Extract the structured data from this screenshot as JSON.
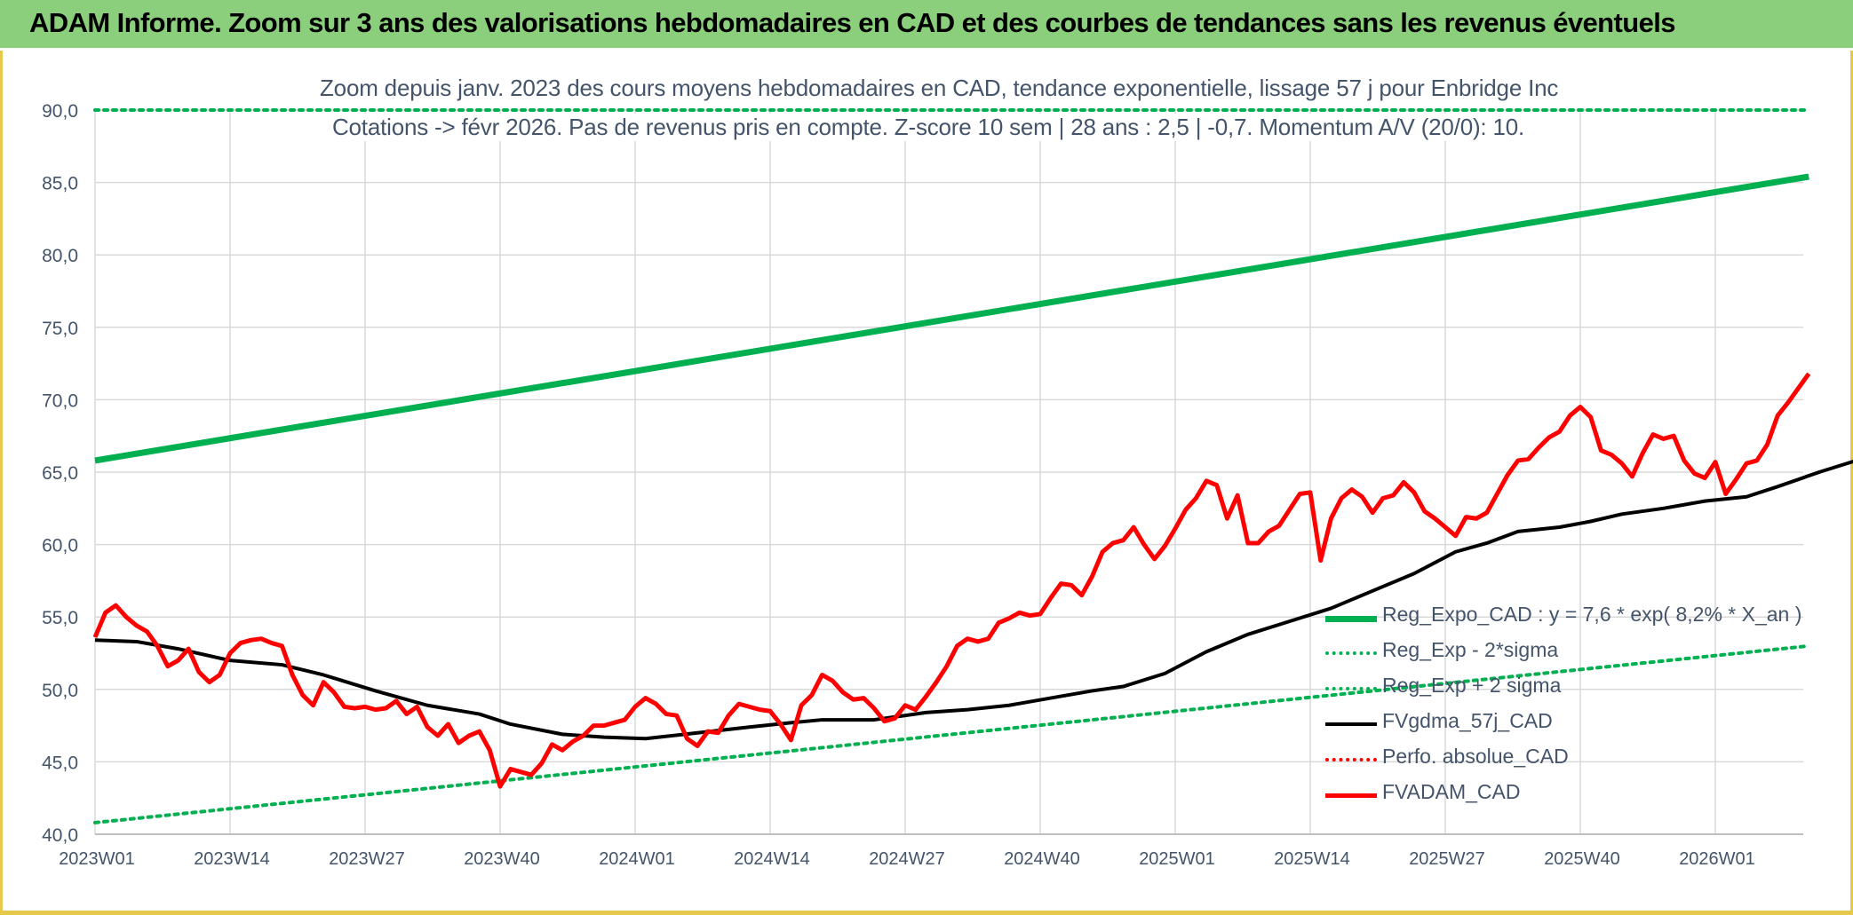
{
  "header": {
    "title": "ADAM Informe. Zoom sur 3 ans des valorisations hebdomadaires en CAD et des courbes de tendances sans les revenus éventuels"
  },
  "colors": {
    "header_bg": "#8bcf7c",
    "regression": "#00b050",
    "fvgdma": "#000000",
    "fvadam": "#ff0000",
    "perfo": "#ff0000",
    "axis_text": "#44546a",
    "grid": "#d9d9d9"
  },
  "chart_data": {
    "type": "line",
    "title": [
      "Zoom depuis janv. 2023 des cours moyens hebdomadaires en CAD, tendance exponentielle, lissage 57 j pour Enbridge Inc",
      "Cotations -> févr 2026. Pas de revenus pris en compte. Z-score 10 sem | 28 ans : 2,5 | -0,7. Momentum A/V (20/0): 10."
    ],
    "xlabel": "",
    "ylabel": "",
    "ylim": [
      40,
      90
    ],
    "yticks": [
      "40,0",
      "45,0",
      "50,0",
      "55,0",
      "60,0",
      "65,0",
      "70,0",
      "75,0",
      "80,0",
      "85,0",
      "90,0"
    ],
    "x_tick_labels": [
      "2023W01",
      "2023W14",
      "2023W27",
      "2023W40",
      "2024W01",
      "2024W14",
      "2024W27",
      "2024W40",
      "2025W01",
      "2025W14",
      "2025W27",
      "2025W40",
      "2026W01"
    ],
    "x_tick_step": 13,
    "n_weeks": 166,
    "grid": true,
    "legend_position": "bottom-right",
    "series": [
      {
        "name": "Reg_Expo_CAD : y = 7,6 * exp( 8,2% *  X_an )",
        "style": "solid-thick",
        "color": "#00b050",
        "points": [
          [
            0,
            65.8
          ],
          [
            165,
            85.4
          ]
        ]
      },
      {
        "name": "Reg_Exp - 2*sigma",
        "style": "dotted",
        "color": "#00b050",
        "points": [
          [
            0,
            40.8
          ],
          [
            165,
            53.0
          ]
        ]
      },
      {
        "name": "Reg_Exp + 2 sigma",
        "style": "dotted",
        "color": "#00b050",
        "points": [
          [
            0,
            90.0
          ],
          [
            165,
            90.0
          ]
        ]
      },
      {
        "name": "FVgdma_57j_CAD",
        "style": "solid",
        "color": "#000000",
        "points": [
          [
            0,
            53.4
          ],
          [
            4,
            53.3
          ],
          [
            8,
            52.8
          ],
          [
            13,
            52.0
          ],
          [
            18,
            51.7
          ],
          [
            22,
            51.0
          ],
          [
            27,
            49.9
          ],
          [
            32,
            48.9
          ],
          [
            37,
            48.3
          ],
          [
            40,
            47.6
          ],
          [
            45,
            46.9
          ],
          [
            49,
            46.7
          ],
          [
            53,
            46.6
          ],
          [
            58,
            47.0
          ],
          [
            63,
            47.4
          ],
          [
            67,
            47.7
          ],
          [
            70,
            47.9
          ],
          [
            75,
            47.9
          ],
          [
            80,
            48.4
          ],
          [
            84,
            48.6
          ],
          [
            88,
            48.9
          ],
          [
            92,
            49.4
          ],
          [
            96,
            49.9
          ],
          [
            99,
            50.2
          ],
          [
            103,
            51.1
          ],
          [
            107,
            52.6
          ],
          [
            111,
            53.8
          ],
          [
            115,
            54.7
          ],
          [
            119,
            55.6
          ],
          [
            123,
            56.8
          ],
          [
            127,
            58.0
          ],
          [
            131,
            59.5
          ],
          [
            134,
            60.1
          ],
          [
            137,
            60.9
          ],
          [
            141,
            61.2
          ],
          [
            144,
            61.6
          ],
          [
            147,
            62.1
          ],
          [
            151,
            62.5
          ],
          [
            155,
            63.0
          ],
          [
            159,
            63.3
          ],
          [
            162,
            64.0
          ],
          [
            166,
            65.0
          ],
          [
            170,
            65.9
          ],
          [
            173,
            66.3
          ],
          [
            177,
            66.4
          ],
          [
            180,
            66.6
          ],
          [
            184,
            66.9
          ],
          [
            188,
            66.9
          ],
          [
            192,
            67.1
          ],
          [
            196,
            68.2
          ],
          [
            199,
            69.5
          ]
        ]
      },
      {
        "name": "Perfo. absolue_CAD",
        "style": "dotted",
        "color": "#ff0000",
        "points": []
      },
      {
        "name": "FVADAM_CAD",
        "style": "solid-thick",
        "color": "#ff0000",
        "points": [
          [
            0,
            53.6
          ],
          [
            1,
            55.3
          ],
          [
            2,
            55.8
          ],
          [
            3,
            55.0
          ],
          [
            4,
            54.4
          ],
          [
            5,
            54.0
          ],
          [
            6,
            53.0
          ],
          [
            7,
            51.6
          ],
          [
            8,
            52.0
          ],
          [
            9,
            52.8
          ],
          [
            10,
            51.2
          ],
          [
            11,
            50.5
          ],
          [
            12,
            51.0
          ],
          [
            13,
            52.5
          ],
          [
            14,
            53.2
          ],
          [
            15,
            53.4
          ],
          [
            16,
            53.5
          ],
          [
            17,
            53.2
          ],
          [
            18,
            53.0
          ],
          [
            19,
            51.0
          ],
          [
            20,
            49.6
          ],
          [
            21,
            48.9
          ],
          [
            22,
            50.5
          ],
          [
            23,
            49.8
          ],
          [
            24,
            48.8
          ],
          [
            25,
            48.7
          ],
          [
            26,
            48.8
          ],
          [
            27,
            48.6
          ],
          [
            28,
            48.7
          ],
          [
            29,
            49.2
          ],
          [
            30,
            48.3
          ],
          [
            31,
            48.8
          ],
          [
            32,
            47.4
          ],
          [
            33,
            46.8
          ],
          [
            34,
            47.6
          ],
          [
            35,
            46.3
          ],
          [
            36,
            46.8
          ],
          [
            37,
            47.1
          ],
          [
            38,
            45.8
          ],
          [
            39,
            43.3
          ],
          [
            40,
            44.5
          ],
          [
            41,
            44.3
          ],
          [
            42,
            44.1
          ],
          [
            43,
            44.9
          ],
          [
            44,
            46.2
          ],
          [
            45,
            45.8
          ],
          [
            46,
            46.4
          ],
          [
            47,
            46.8
          ],
          [
            48,
            47.5
          ],
          [
            49,
            47.5
          ],
          [
            50,
            47.7
          ],
          [
            51,
            47.9
          ],
          [
            52,
            48.8
          ],
          [
            53,
            49.4
          ],
          [
            54,
            49.0
          ],
          [
            55,
            48.3
          ],
          [
            56,
            48.2
          ],
          [
            57,
            46.6
          ],
          [
            58,
            46.1
          ],
          [
            59,
            47.1
          ],
          [
            60,
            47.0
          ],
          [
            61,
            48.2
          ],
          [
            62,
            49.0
          ],
          [
            63,
            48.8
          ],
          [
            64,
            48.6
          ],
          [
            65,
            48.5
          ],
          [
            66,
            47.6
          ],
          [
            67,
            46.5
          ],
          [
            68,
            48.9
          ],
          [
            69,
            49.6
          ],
          [
            70,
            51.0
          ],
          [
            71,
            50.6
          ],
          [
            72,
            49.8
          ],
          [
            73,
            49.3
          ],
          [
            74,
            49.4
          ],
          [
            75,
            48.7
          ],
          [
            76,
            47.8
          ],
          [
            77,
            48.0
          ],
          [
            78,
            48.9
          ],
          [
            79,
            48.6
          ],
          [
            80,
            49.5
          ],
          [
            81,
            50.5
          ],
          [
            82,
            51.6
          ],
          [
            83,
            53.0
          ],
          [
            84,
            53.5
          ],
          [
            85,
            53.3
          ],
          [
            86,
            53.5
          ],
          [
            87,
            54.6
          ],
          [
            88,
            54.9
          ],
          [
            89,
            55.3
          ],
          [
            90,
            55.1
          ],
          [
            91,
            55.2
          ],
          [
            92,
            56.3
          ],
          [
            93,
            57.3
          ],
          [
            94,
            57.2
          ],
          [
            95,
            56.5
          ],
          [
            96,
            57.8
          ],
          [
            97,
            59.5
          ],
          [
            98,
            60.1
          ],
          [
            99,
            60.3
          ],
          [
            100,
            61.2
          ],
          [
            101,
            60.0
          ],
          [
            102,
            59.0
          ],
          [
            103,
            59.9
          ],
          [
            104,
            61.1
          ],
          [
            105,
            62.4
          ],
          [
            106,
            63.2
          ],
          [
            107,
            64.4
          ],
          [
            108,
            64.1
          ],
          [
            109,
            61.8
          ],
          [
            110,
            63.4
          ],
          [
            111,
            60.1
          ],
          [
            112,
            60.1
          ],
          [
            113,
            60.9
          ],
          [
            114,
            61.3
          ],
          [
            115,
            62.4
          ],
          [
            116,
            63.5
          ],
          [
            117,
            63.6
          ],
          [
            118,
            58.9
          ],
          [
            119,
            61.8
          ],
          [
            120,
            63.2
          ],
          [
            121,
            63.8
          ],
          [
            122,
            63.3
          ],
          [
            123,
            62.2
          ],
          [
            124,
            63.2
          ],
          [
            125,
            63.4
          ],
          [
            126,
            64.3
          ],
          [
            127,
            63.6
          ],
          [
            128,
            62.3
          ],
          [
            129,
            61.8
          ],
          [
            130,
            61.2
          ],
          [
            131,
            60.6
          ],
          [
            132,
            61.9
          ],
          [
            133,
            61.8
          ],
          [
            134,
            62.2
          ],
          [
            135,
            63.5
          ],
          [
            136,
            64.8
          ],
          [
            137,
            65.8
          ],
          [
            138,
            65.9
          ],
          [
            139,
            66.7
          ],
          [
            140,
            67.4
          ],
          [
            141,
            67.8
          ],
          [
            142,
            68.9
          ],
          [
            143,
            69.5
          ],
          [
            144,
            68.8
          ],
          [
            145,
            66.5
          ],
          [
            146,
            66.2
          ],
          [
            147,
            65.6
          ],
          [
            148,
            64.7
          ],
          [
            149,
            66.3
          ],
          [
            150,
            67.6
          ],
          [
            151,
            67.3
          ],
          [
            152,
            67.5
          ],
          [
            153,
            65.8
          ],
          [
            154,
            64.9
          ],
          [
            155,
            64.6
          ],
          [
            156,
            65.7
          ],
          [
            157,
            63.5
          ],
          [
            158,
            64.5
          ],
          [
            159,
            65.6
          ],
          [
            160,
            65.8
          ],
          [
            161,
            66.9
          ],
          [
            162,
            68.9
          ],
          [
            163,
            69.8
          ],
          [
            164,
            70.8
          ],
          [
            165,
            71.8
          ]
        ]
      }
    ]
  }
}
